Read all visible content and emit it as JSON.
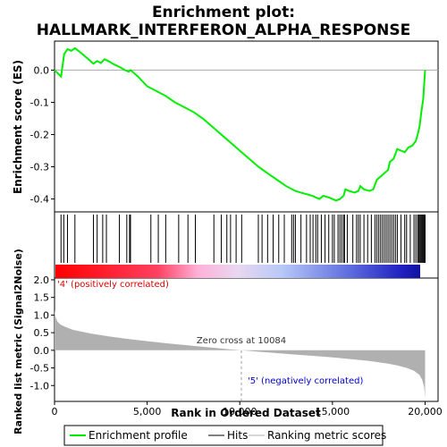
{
  "chart_data": {
    "type": "line",
    "title_line1": "Enrichment plot:",
    "title_line2": "HALLMARK_INTERFERON_ALPHA_RESPONSE",
    "es_panel": {
      "ylabel": "Enrichment score (ES)",
      "ylim": [
        -0.44,
        0.09
      ],
      "yticks": [
        0.0,
        -0.1,
        -0.2,
        -0.3,
        -0.4
      ],
      "ytick_labels": [
        "0.0",
        "-0.1",
        "-0.2",
        "-0.3",
        "-0.4"
      ],
      "series": [
        {
          "name": "Enrichment profile",
          "color": "#00ee00",
          "x": [
            0,
            350,
            450,
            520,
            700,
            900,
            1100,
            1400,
            1800,
            2100,
            2300,
            2500,
            2700,
            2900,
            3200,
            3500,
            3800,
            4000,
            4100,
            4500,
            5000,
            5500,
            6000,
            6500,
            7000,
            7500,
            8000,
            8500,
            9000,
            9500,
            10000,
            10500,
            11000,
            11500,
            12000,
            12500,
            13000,
            13300,
            13600,
            13900,
            14100,
            14300,
            14500,
            14800,
            15000,
            15200,
            15400,
            15600,
            15700,
            15900,
            16200,
            16400,
            16500,
            16700,
            17000,
            17200,
            17400,
            17600,
            17800,
            18000,
            18100,
            18300,
            18500,
            18700,
            18900,
            19100,
            19300,
            19500,
            19600,
            19700,
            19800,
            19900,
            20000
          ],
          "y": [
            0.0,
            -0.02,
            0.02,
            0.05,
            0.065,
            0.06,
            0.068,
            0.055,
            0.035,
            0.02,
            0.028,
            0.022,
            0.034,
            0.028,
            0.018,
            0.01,
            0.0,
            -0.005,
            0.0,
            -0.02,
            -0.05,
            -0.065,
            -0.08,
            -0.1,
            -0.115,
            -0.13,
            -0.15,
            -0.175,
            -0.2,
            -0.225,
            -0.25,
            -0.275,
            -0.3,
            -0.32,
            -0.34,
            -0.36,
            -0.375,
            -0.38,
            -0.385,
            -0.39,
            -0.395,
            -0.4,
            -0.39,
            -0.395,
            -0.4,
            -0.405,
            -0.4,
            -0.39,
            -0.37,
            -0.375,
            -0.38,
            -0.375,
            -0.36,
            -0.37,
            -0.375,
            -0.37,
            -0.34,
            -0.33,
            -0.32,
            -0.31,
            -0.285,
            -0.275,
            -0.245,
            -0.25,
            -0.255,
            -0.24,
            -0.235,
            -0.22,
            -0.2,
            -0.175,
            -0.13,
            -0.09,
            0.0
          ]
        }
      ]
    },
    "hits_panel": {
      "legend_label": "Hits",
      "hit_positions": [
        350,
        500,
        700,
        1100,
        2100,
        2300,
        2600,
        2800,
        3500,
        3900,
        4050,
        4100,
        5200,
        5600,
        6000,
        6700,
        7200,
        7600,
        8600,
        9000,
        9300,
        9500,
        9800,
        10100,
        11000,
        11200,
        11500,
        11800,
        12100,
        12400,
        12800,
        12900,
        13000,
        13300,
        13600,
        13800,
        13950,
        14100,
        14200,
        14400,
        14600,
        14800,
        15000,
        15100,
        15300,
        15400,
        15500,
        15600,
        15650,
        15800,
        16100,
        16300,
        16400,
        16500,
        16700,
        16900,
        17100,
        17300,
        17400,
        17500,
        17600,
        17700,
        17800,
        17900,
        18000,
        18100,
        18200,
        18300,
        18400,
        18500,
        18700,
        18900,
        19000,
        19200,
        19400,
        19500,
        19600,
        19650,
        19700,
        19750,
        19800,
        19850,
        19900,
        19950,
        20000
      ]
    },
    "metric_panel": {
      "ylabel": "Ranked list metric (Signal2Noise)",
      "legend_label": "Ranking metric scores",
      "ylim": [
        -1.45,
        2.05
      ],
      "yticks": [
        2.0,
        1.5,
        1.0,
        0.5,
        0.0,
        -0.5,
        -1.0
      ],
      "ytick_labels": [
        "2.0",
        "1.5",
        "1.0",
        "0.5",
        "0.0",
        "-0.5",
        "-1.0"
      ],
      "x": [
        0,
        50,
        150,
        300,
        600,
        1000,
        2000,
        3000,
        4000,
        5000,
        6000,
        7000,
        8000,
        9000,
        10084,
        11000,
        12000,
        13000,
        14000,
        15000,
        16000,
        17000,
        18000,
        18500,
        19000,
        19400,
        19700,
        19850,
        19950,
        20000
      ],
      "values": [
        1.15,
        0.95,
        0.82,
        0.74,
        0.66,
        0.58,
        0.47,
        0.39,
        0.32,
        0.26,
        0.2,
        0.15,
        0.1,
        0.05,
        0.0,
        -0.04,
        -0.08,
        -0.12,
        -0.16,
        -0.2,
        -0.25,
        -0.3,
        -0.38,
        -0.43,
        -0.5,
        -0.58,
        -0.7,
        -0.85,
        -1.05,
        -1.35
      ],
      "zero_cross_label": "Zero cross at 10084",
      "zero_cross": 10084,
      "pos_label": "'4' (positively correlated)",
      "neg_label": "'5' (negatively correlated)"
    },
    "xlabel": "Rank in Ordered Dataset",
    "xlim": [
      0,
      20700
    ],
    "xticks": [
      0,
      5000,
      10000,
      15000,
      20000
    ],
    "xtick_labels": [
      "0",
      "5,000",
      "10,000",
      "15,000",
      "20,000"
    ],
    "legend_placement": "bottom",
    "colors": {
      "profile": "#00ee00",
      "hits": "#000000",
      "metric": "#b0b0b0",
      "pos_label": "#dd0000",
      "neg_label": "#0000cc"
    }
  }
}
